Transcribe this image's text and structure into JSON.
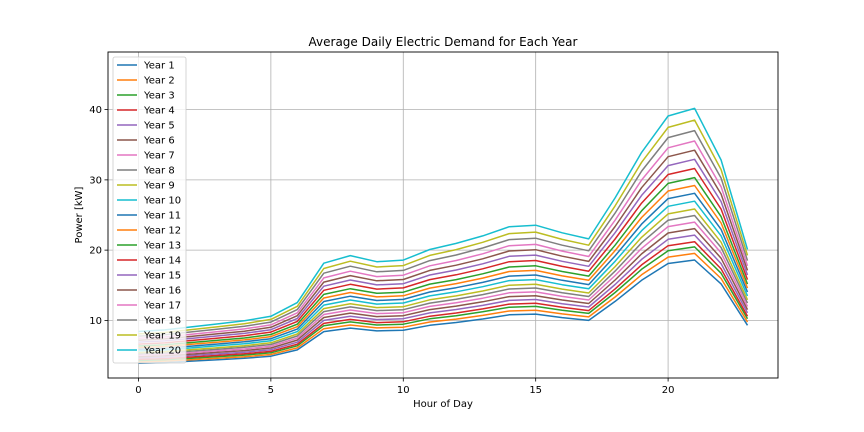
{
  "chart_data": {
    "type": "line",
    "title": "Average Daily Electric Demand for Each Year",
    "xlabel": "Hour of Day",
    "ylabel": "Power [kW]",
    "xlim": [
      -1.15,
      24.15
    ],
    "ylim": [
      1.8,
      48.2
    ],
    "xticks": [
      0,
      5,
      10,
      15,
      20
    ],
    "yticks": [
      10,
      20,
      30,
      40
    ],
    "grid": true,
    "legend_position": "top-left",
    "colors": [
      "#1f77b4",
      "#ff7f0e",
      "#2ca02c",
      "#d62728",
      "#9467bd",
      "#8c564b",
      "#e377c2",
      "#7f7f7f",
      "#bcbd22",
      "#17becf"
    ],
    "x": [
      0,
      1,
      2,
      3,
      4,
      5,
      6,
      7,
      8,
      9,
      10,
      11,
      12,
      13,
      14,
      15,
      16,
      17,
      18,
      19,
      20,
      21,
      22,
      23
    ],
    "series_base": [
      3.9,
      4.0,
      4.2,
      4.4,
      4.6,
      4.9,
      5.8,
      8.4,
      8.9,
      8.5,
      8.6,
      9.3,
      9.7,
      10.2,
      10.8,
      10.9,
      10.4,
      10.0,
      12.7,
      15.7,
      18.1,
      18.6,
      15.2,
      9.3
    ],
    "series": [
      {
        "name": "Year 1",
        "scale": 1.0
      },
      {
        "name": "Year 2",
        "scale": 1.05
      },
      {
        "name": "Year 3",
        "scale": 1.1
      },
      {
        "name": "Year 4",
        "scale": 1.14
      },
      {
        "name": "Year 5",
        "scale": 1.19
      },
      {
        "name": "Year 6",
        "scale": 1.24
      },
      {
        "name": "Year 7",
        "scale": 1.29
      },
      {
        "name": "Year 8",
        "scale": 1.34
      },
      {
        "name": "Year 9",
        "scale": 1.39
      },
      {
        "name": "Year 10",
        "scale": 1.45
      },
      {
        "name": "Year 11",
        "scale": 1.51
      },
      {
        "name": "Year 12",
        "scale": 1.57
      },
      {
        "name": "Year 13",
        "scale": 1.63
      },
      {
        "name": "Year 14",
        "scale": 1.7
      },
      {
        "name": "Year 15",
        "scale": 1.77
      },
      {
        "name": "Year 16",
        "scale": 1.84
      },
      {
        "name": "Year 17",
        "scale": 1.91
      },
      {
        "name": "Year 18",
        "scale": 1.99
      },
      {
        "name": "Year 19",
        "scale": 2.07
      },
      {
        "name": "Year 20",
        "scale": 2.16
      }
    ]
  }
}
